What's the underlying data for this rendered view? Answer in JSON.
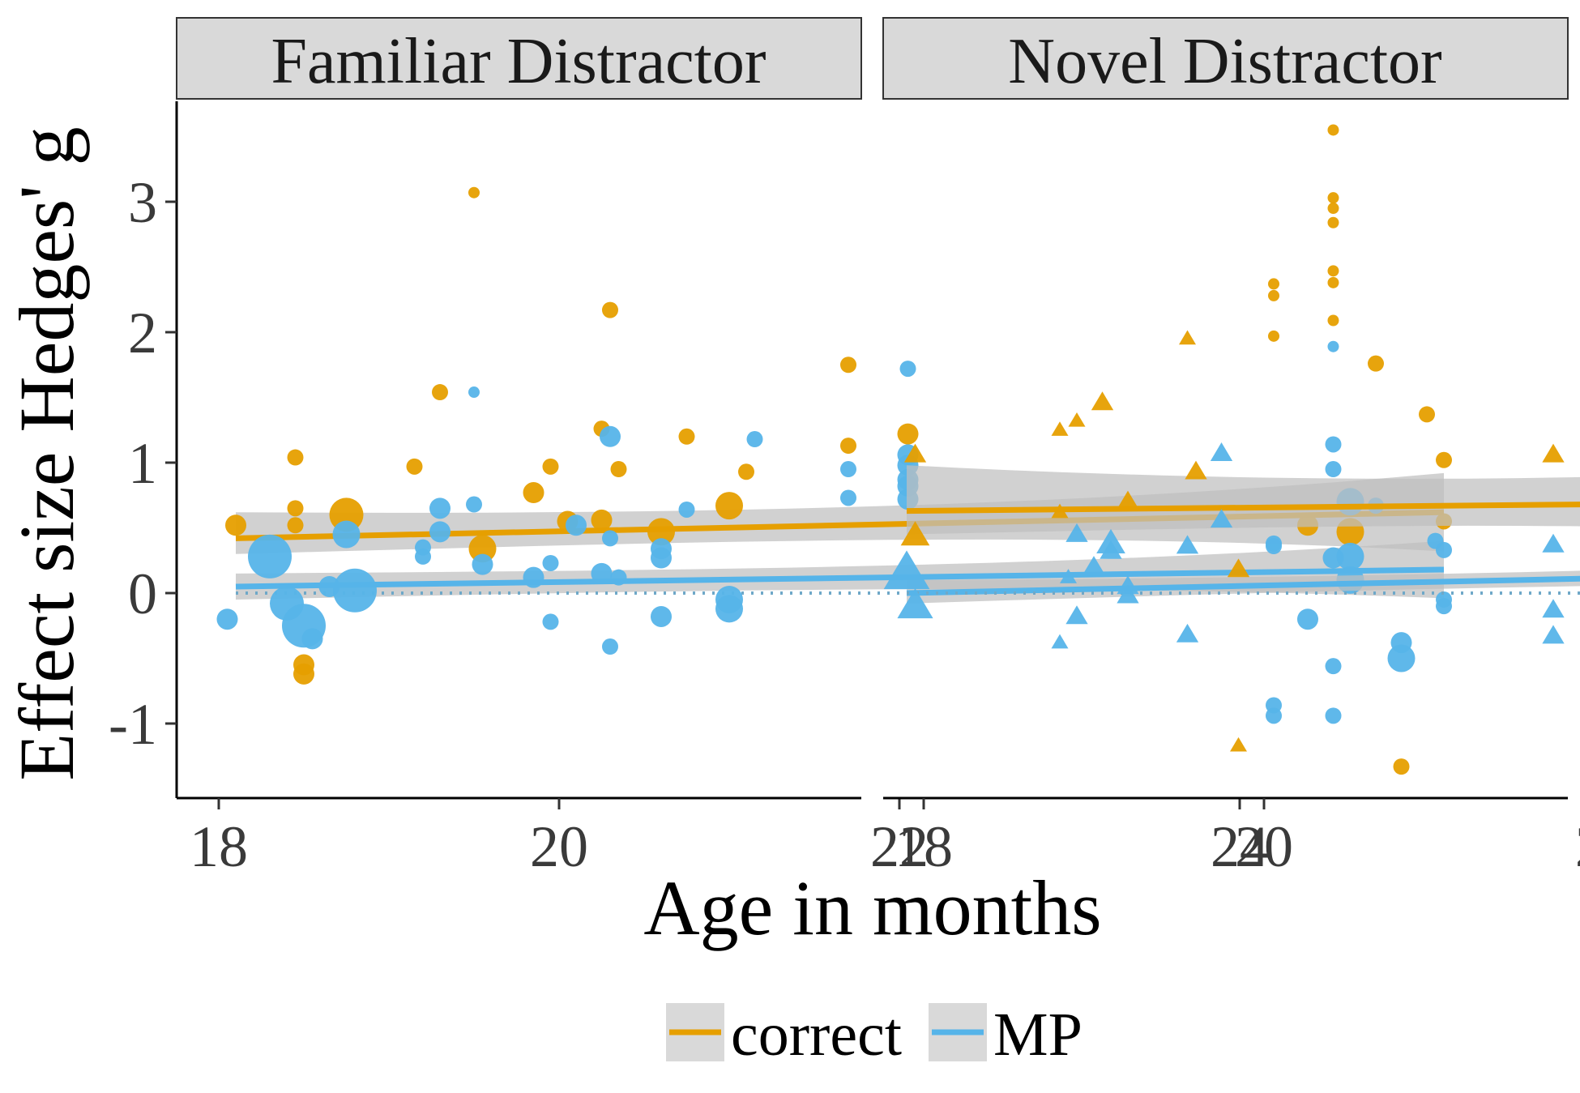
{
  "chart_data": {
    "type": "scatter",
    "ylabel": "Effect size Hedges' g",
    "xlabel": "Age in months",
    "xlim": [
      17.5,
      25.5
    ],
    "ylim": [
      -1.6,
      3.8
    ],
    "x_ticks": [
      18,
      20,
      22,
      24
    ],
    "y_ticks": [
      -1,
      0,
      1,
      2,
      3
    ],
    "reference_line_y": 0,
    "grid": false,
    "legend_position": "bottom",
    "legend": [
      {
        "name": "correct",
        "color": "#E69F00"
      },
      {
        "name": "MP",
        "color": "#56B4E9"
      }
    ],
    "panels": [
      {
        "title": "Familiar Distractor",
        "marker": "circle",
        "fits": [
          {
            "series": "correct",
            "x": [
              18.1,
              25.2
            ],
            "y": [
              0.42,
              0.62
            ],
            "ci_lower": [
              0.3,
              0.32
            ],
            "ci_upper": [
              0.62,
              0.92
            ]
          },
          {
            "series": "MP",
            "x": [
              18.1,
              25.2
            ],
            "y": [
              0.05,
              0.18
            ],
            "ci_lower": [
              -0.05,
              -0.04
            ],
            "ci_upper": [
              0.15,
              0.4
            ]
          }
        ],
        "series": [
          {
            "name": "correct",
            "points": [
              [
                18.1,
                0.52,
                3
              ],
              [
                18.45,
                1.04,
                2
              ],
              [
                18.45,
                0.65,
                2
              ],
              [
                18.45,
                0.52,
                2
              ],
              [
                18.5,
                -0.55,
                3
              ],
              [
                18.5,
                -0.62,
                3
              ],
              [
                18.75,
                0.6,
                5
              ],
              [
                19.15,
                0.97,
                2
              ],
              [
                19.3,
                1.54,
                2
              ],
              [
                19.5,
                3.07,
                1
              ],
              [
                19.55,
                0.34,
                4
              ],
              [
                19.85,
                0.77,
                3
              ],
              [
                19.95,
                0.97,
                2
              ],
              [
                20.05,
                0.55,
                3
              ],
              [
                20.25,
                0.56,
                3
              ],
              [
                20.25,
                1.26,
                2
              ],
              [
                20.3,
                2.17,
                2
              ],
              [
                20.35,
                0.95,
                2
              ],
              [
                20.6,
                0.47,
                4
              ],
              [
                20.75,
                1.2,
                2
              ],
              [
                21.0,
                0.67,
                4
              ],
              [
                21.1,
                0.93,
                2
              ],
              [
                21.7,
                1.75,
                2
              ],
              [
                21.7,
                1.13,
                2
              ],
              [
                22.05,
                1.22,
                3
              ],
              [
                24.2,
                2.37,
                1
              ],
              [
                24.2,
                2.28,
                1
              ],
              [
                24.2,
                1.97,
                1
              ],
              [
                24.4,
                0.52,
                3
              ],
              [
                24.55,
                3.55,
                1
              ],
              [
                24.55,
                3.03,
                1
              ],
              [
                24.55,
                2.95,
                1
              ],
              [
                24.55,
                2.84,
                1
              ],
              [
                24.55,
                2.47,
                1
              ],
              [
                24.55,
                2.38,
                1
              ],
              [
                24.55,
                2.09,
                1
              ],
              [
                24.65,
                0.47,
                4
              ],
              [
                24.8,
                1.76,
                2
              ],
              [
                24.95,
                -1.33,
                2
              ],
              [
                25.1,
                1.37,
                2
              ],
              [
                25.2,
                1.02,
                2
              ],
              [
                25.2,
                0.55,
                2
              ]
            ]
          },
          {
            "name": "MP",
            "points": [
              [
                18.05,
                -0.2,
                3
              ],
              [
                18.3,
                0.28,
                6
              ],
              [
                18.4,
                -0.08,
                5
              ],
              [
                18.5,
                -0.25,
                6
              ],
              [
                18.55,
                -0.35,
                3
              ],
              [
                18.65,
                0.05,
                3
              ],
              [
                18.8,
                0.02,
                6
              ],
              [
                18.75,
                0.45,
                4
              ],
              [
                19.2,
                0.35,
                2
              ],
              [
                19.2,
                0.28,
                2
              ],
              [
                19.3,
                0.65,
                3
              ],
              [
                19.3,
                0.47,
                3
              ],
              [
                19.5,
                1.54,
                1
              ],
              [
                19.5,
                0.68,
                2
              ],
              [
                19.55,
                0.22,
                3
              ],
              [
                19.85,
                0.12,
                3
              ],
              [
                19.95,
                0.23,
                2
              ],
              [
                19.95,
                -0.22,
                2
              ],
              [
                20.1,
                0.52,
                3
              ],
              [
                20.25,
                0.15,
                3
              ],
              [
                20.3,
                1.2,
                3
              ],
              [
                20.3,
                0.42,
                2
              ],
              [
                20.3,
                -0.41,
                2
              ],
              [
                20.35,
                0.12,
                2
              ],
              [
                20.6,
                0.34,
                3
              ],
              [
                20.6,
                0.27,
                3
              ],
              [
                20.6,
                -0.18,
                3
              ],
              [
                20.75,
                0.64,
                2
              ],
              [
                21.0,
                -0.05,
                4
              ],
              [
                21.0,
                -0.12,
                4
              ],
              [
                21.15,
                1.18,
                2
              ],
              [
                21.7,
                0.95,
                2
              ],
              [
                21.7,
                0.73,
                2
              ],
              [
                22.05,
                1.72,
                2
              ],
              [
                22.05,
                1.06,
                3
              ],
              [
                22.05,
                0.98,
                3
              ],
              [
                22.05,
                0.87,
                3
              ],
              [
                22.05,
                0.82,
                3
              ],
              [
                22.05,
                0.72,
                3
              ],
              [
                24.2,
                0.38,
                2
              ],
              [
                24.2,
                0.36,
                2
              ],
              [
                24.2,
                -0.86,
                2
              ],
              [
                24.2,
                -0.94,
                2
              ],
              [
                24.4,
                -0.2,
                3
              ],
              [
                24.55,
                1.89,
                1
              ],
              [
                24.55,
                1.14,
                2
              ],
              [
                24.55,
                0.95,
                2
              ],
              [
                24.55,
                0.27,
                3
              ],
              [
                24.55,
                -0.56,
                2
              ],
              [
                24.55,
                -0.94,
                2
              ],
              [
                24.65,
                0.7,
                4
              ],
              [
                24.65,
                0.28,
                4
              ],
              [
                24.65,
                0.1,
                4
              ],
              [
                24.8,
                0.67,
                2
              ],
              [
                24.95,
                -0.38,
                3
              ],
              [
                24.95,
                -0.5,
                4
              ],
              [
                25.15,
                0.4,
                2
              ],
              [
                25.2,
                0.33,
                2
              ],
              [
                25.2,
                -0.05,
                2
              ],
              [
                25.2,
                -0.1,
                2
              ]
            ]
          }
        ]
      },
      {
        "title": "Novel Distractor",
        "marker": "triangle",
        "fits": [
          {
            "series": "correct",
            "x": [
              17.9,
              25.1
            ],
            "y": [
              0.63,
              0.72
            ],
            "ci_lower": [
              0.45,
              0.32
            ],
            "ci_upper": [
              0.98,
              1.12
            ]
          },
          {
            "series": "MP",
            "x": [
              17.9,
              25.1
            ],
            "y": [
              0.0,
              0.2
            ],
            "ci_lower": [
              -0.08,
              0.08
            ],
            "ci_upper": [
              0.1,
              0.32
            ]
          }
        ],
        "series": [
          {
            "name": "correct",
            "points": [
              [
                17.95,
                1.06,
                3
              ],
              [
                17.95,
                0.44,
                4
              ],
              [
                18.8,
                1.25,
                2
              ],
              [
                18.8,
                0.62,
                2
              ],
              [
                18.9,
                1.32,
                2
              ],
              [
                19.05,
                1.46,
                3
              ],
              [
                19.2,
                0.7,
                3
              ],
              [
                19.55,
                1.95,
                2
              ],
              [
                19.6,
                0.93,
                3
              ],
              [
                19.85,
                -1.17,
                2
              ],
              [
                19.85,
                0.18,
                3
              ],
              [
                21.7,
                1.06,
                3
              ],
              [
                23.8,
                0.73,
                4
              ],
              [
                24.0,
                0.8,
                5
              ],
              [
                24.0,
                0.5,
                4
              ],
              [
                24.1,
                1.35,
                2
              ],
              [
                24.4,
                0.72,
                2
              ],
              [
                25.1,
                2.03,
                2
              ],
              [
                25.1,
                0.36,
                3
              ]
            ]
          },
          {
            "name": "MP",
            "points": [
              [
                17.9,
                0.15,
                6
              ],
              [
                17.95,
                -0.1,
                5
              ],
              [
                18.8,
                -0.38,
                2
              ],
              [
                18.85,
                0.12,
                2
              ],
              [
                18.9,
                0.45,
                3
              ],
              [
                18.9,
                -0.18,
                3
              ],
              [
                19.0,
                0.2,
                3
              ],
              [
                19.1,
                0.38,
                4
              ],
              [
                19.1,
                0.32,
                3
              ],
              [
                19.2,
                0.05,
                3
              ],
              [
                19.2,
                -0.02,
                3
              ],
              [
                19.55,
                0.36,
                3
              ],
              [
                19.55,
                -0.32,
                3
              ],
              [
                19.75,
                1.07,
                3
              ],
              [
                19.75,
                0.56,
                3
              ],
              [
                21.7,
                0.37,
                3
              ],
              [
                21.7,
                -0.13,
                3
              ],
              [
                21.7,
                -0.33,
                3
              ],
              [
                23.8,
                0.4,
                5
              ],
              [
                23.8,
                0.2,
                6
              ],
              [
                23.8,
                -0.1,
                6
              ],
              [
                24.0,
                0.32,
                6
              ],
              [
                24.0,
                0.1,
                6
              ],
              [
                24.0,
                -0.05,
                6
              ],
              [
                24.1,
                0.08,
                3
              ],
              [
                24.1,
                -0.12,
                3
              ],
              [
                24.4,
                0.22,
                3
              ],
              [
                24.4,
                -0.1,
                3
              ],
              [
                25.1,
                1.02,
                3
              ],
              [
                25.1,
                0.47,
                3
              ]
            ]
          }
        ]
      }
    ]
  }
}
